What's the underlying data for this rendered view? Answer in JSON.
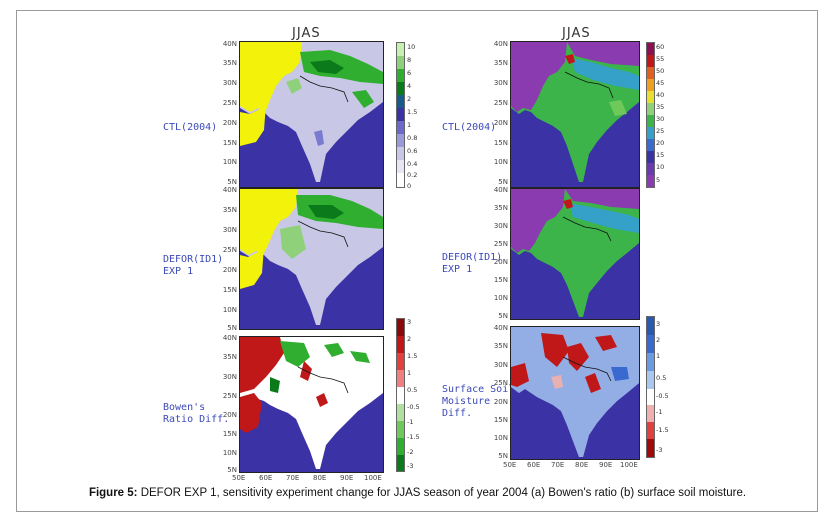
{
  "figure": {
    "caption_bold": "Figure 5:",
    "caption_text": " DEFOR EXP 1, sensitivity experiment change for JJAS season of year 2004 (a) Bowen's ratio (b) surface soil moisture."
  },
  "left_column": {
    "title": "JJAS",
    "panels": [
      {
        "label": "CTL(2004)"
      },
      {
        "label": "DEFOR(ID1)\nEXP 1"
      },
      {
        "label": "Bowen's\nRatio Diff."
      }
    ],
    "colorbar_top": [
      "10",
      "8",
      "6",
      "4",
      "2",
      "1.5",
      "1",
      "0.8",
      "0.6",
      "0.4",
      "0.2",
      "0"
    ],
    "colorbar_bottom": [
      "3",
      "2",
      "1.5",
      "1",
      "0.5",
      "-0.5",
      "-1",
      "-1.5",
      "-2",
      "-3"
    ]
  },
  "right_column": {
    "title": "JJAS",
    "panels": [
      {
        "label": "CTL(2004)"
      },
      {
        "label": "DEFOR(ID1)\nEXP 1"
      },
      {
        "label": "Surface Soil\nMoisture\nDiff."
      }
    ],
    "colorbar_top": [
      "60",
      "55",
      "50",
      "45",
      "40",
      "35",
      "30",
      "25",
      "20",
      "15",
      "10",
      "5"
    ],
    "colorbar_bottom": [
      "3",
      "2",
      "1",
      "0.5",
      "-0.5",
      "-1",
      "-1.5",
      "-3"
    ]
  },
  "axes": {
    "lat_ticks": [
      "40N",
      "35N",
      "30N",
      "25N",
      "20N",
      "15N",
      "10N",
      "5N"
    ],
    "lon_ticks": [
      "50E",
      "60E",
      "70E",
      "80E",
      "90E",
      "100E"
    ]
  },
  "colors": {
    "ocean": "#3b32a6",
    "desert_yellow": "#f2f20a",
    "bowen_greens": [
      "#0a7a1a",
      "#2fae2f",
      "#8fd07a"
    ],
    "soil_purple": "#8a3bb0",
    "soil_green": "#3cb44a",
    "diff_red": "#c01818",
    "diff_blue": "#3a6ad0"
  }
}
